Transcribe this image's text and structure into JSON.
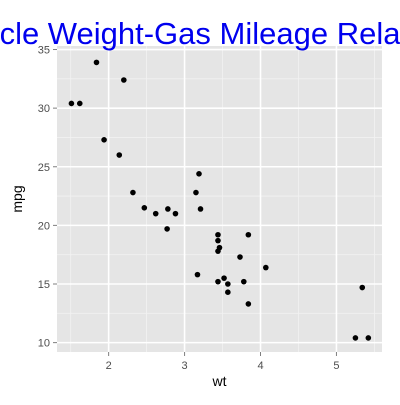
{
  "chart_data": {
    "type": "scatter",
    "title": "cle Weight-Gas Mileage Rela",
    "xlabel": "wt",
    "ylabel": "mpg",
    "xlim": [
      1.32,
      5.6
    ],
    "ylim": [
      9.2,
      35.3
    ],
    "x_ticks": [
      2,
      3,
      4,
      5
    ],
    "y_ticks": [
      10,
      15,
      20,
      25,
      30,
      35
    ],
    "x_tick_labels": [
      "2",
      "3",
      "4",
      "5"
    ],
    "y_tick_labels": [
      "10",
      "15",
      "20",
      "25",
      "30",
      "35"
    ],
    "grid": true,
    "points": [
      {
        "x": 1.51,
        "y": 30.4
      },
      {
        "x": 1.62,
        "y": 30.4
      },
      {
        "x": 1.84,
        "y": 33.9
      },
      {
        "x": 1.94,
        "y": 27.3
      },
      {
        "x": 2.14,
        "y": 26.0
      },
      {
        "x": 2.2,
        "y": 32.4
      },
      {
        "x": 2.32,
        "y": 22.8
      },
      {
        "x": 2.47,
        "y": 21.5
      },
      {
        "x": 2.62,
        "y": 21.0
      },
      {
        "x": 2.77,
        "y": 19.7
      },
      {
        "x": 2.78,
        "y": 21.4
      },
      {
        "x": 2.88,
        "y": 21.0
      },
      {
        "x": 3.15,
        "y": 22.8
      },
      {
        "x": 3.17,
        "y": 15.8
      },
      {
        "x": 3.19,
        "y": 24.4
      },
      {
        "x": 3.21,
        "y": 21.4
      },
      {
        "x": 3.44,
        "y": 19.2
      },
      {
        "x": 3.44,
        "y": 18.7
      },
      {
        "x": 3.44,
        "y": 17.8
      },
      {
        "x": 3.44,
        "y": 15.2
      },
      {
        "x": 3.46,
        "y": 18.1
      },
      {
        "x": 3.52,
        "y": 15.5
      },
      {
        "x": 3.57,
        "y": 15.0
      },
      {
        "x": 3.57,
        "y": 14.3
      },
      {
        "x": 3.73,
        "y": 17.3
      },
      {
        "x": 3.78,
        "y": 15.2
      },
      {
        "x": 3.84,
        "y": 19.2
      },
      {
        "x": 3.84,
        "y": 13.3
      },
      {
        "x": 4.07,
        "y": 16.4
      },
      {
        "x": 5.25,
        "y": 10.4
      },
      {
        "x": 5.34,
        "y": 14.7
      },
      {
        "x": 5.42,
        "y": 10.4
      }
    ]
  },
  "colors": {
    "title": "#0000ee",
    "panel_background": "#e5e5e5",
    "grid_major": "#ffffff",
    "grid_minor": "#f2f2f2",
    "tick_label": "#4d4d4d",
    "axis_label": "#000000",
    "point": "#000000"
  }
}
